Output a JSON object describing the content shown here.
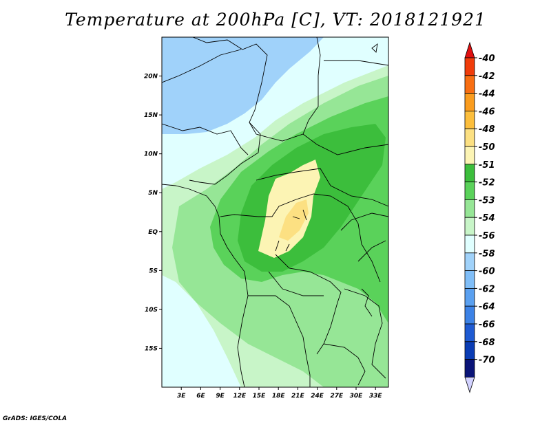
{
  "title": "Temperature at 200hPa [C], VT: 2018121921",
  "credit": "GrADS: IGES/COLA",
  "chart_data": {
    "type": "heatmap",
    "title": "Temperature at 200hPa [C], VT: 2018121921",
    "variable": "Temperature at 200hPa",
    "units": "C",
    "valid_time": "2018121921",
    "x_ticks": [
      "3E",
      "6E",
      "9E",
      "12E",
      "15E",
      "18E",
      "21E",
      "24E",
      "27E",
      "30E",
      "33E"
    ],
    "y_ticks": [
      "20N",
      "15N",
      "10N",
      "5N",
      "EQ",
      "5S",
      "10S",
      "15S"
    ],
    "xlim_deg_east": [
      0,
      35
    ],
    "ylim_deg_north": [
      -20,
      25
    ],
    "colorbar": {
      "labels": [
        "-40",
        "-42",
        "-44",
        "-46",
        "-48",
        "-50",
        "-51",
        "-52",
        "-53",
        "-54",
        "-56",
        "-58",
        "-60",
        "-62",
        "-64",
        "-66",
        "-68",
        "-70"
      ],
      "colors": [
        "#e01010",
        "#f03c0a",
        "#f86e12",
        "#fa9c1e",
        "#fcbe3c",
        "#fce082",
        "#fcf4b4",
        "#3cbe3c",
        "#5ad25a",
        "#96e696",
        "#c8f5c8",
        "#e0ffff",
        "#a0d2fa",
        "#80bef8",
        "#5aa0f0",
        "#3c82e6",
        "#1e5ad2",
        "#0a3cb4",
        "#0a1478",
        "#d2d2ff"
      ]
    },
    "regions": [
      {
        "band": "-50 to -51",
        "color": "#fcf4b4",
        "description": "warmest core over central Africa ~3S-7N, 16E-25E"
      },
      {
        "band": "-51 to -52",
        "color": "#3cbe3c"
      },
      {
        "band": "-52 to -53",
        "color": "#5ad25a"
      },
      {
        "band": "-53 to -54",
        "color": "#96e696"
      },
      {
        "band": "-54 to -56",
        "color": "#c8f5c8"
      },
      {
        "band": "-56 to -58",
        "color": "#e0ffff"
      },
      {
        "band": "-58 to -60",
        "color": "#a0d2fa"
      }
    ]
  }
}
